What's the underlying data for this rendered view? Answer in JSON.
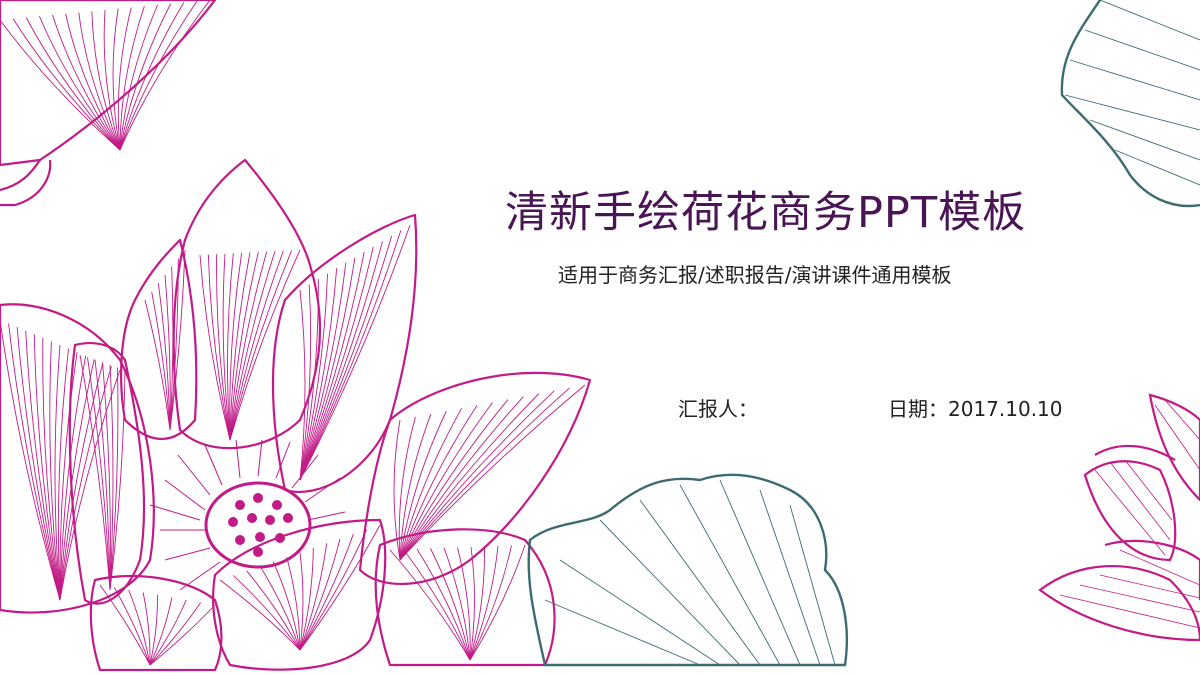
{
  "slide": {
    "title": "清新手绘荷花商务PPT模板",
    "subtitle": "适用于商务汇报/述职报告/演讲课件通用模板",
    "reporter_label": "汇报人：",
    "date_text": "日期：2017.10.10"
  },
  "colors": {
    "lotus": "#c21a86",
    "leaf": "#3d6b72",
    "title": "#4a1554",
    "text": "#222222"
  },
  "icons": [
    "lotus-flower-illustration",
    "lotus-leaf-illustration"
  ]
}
